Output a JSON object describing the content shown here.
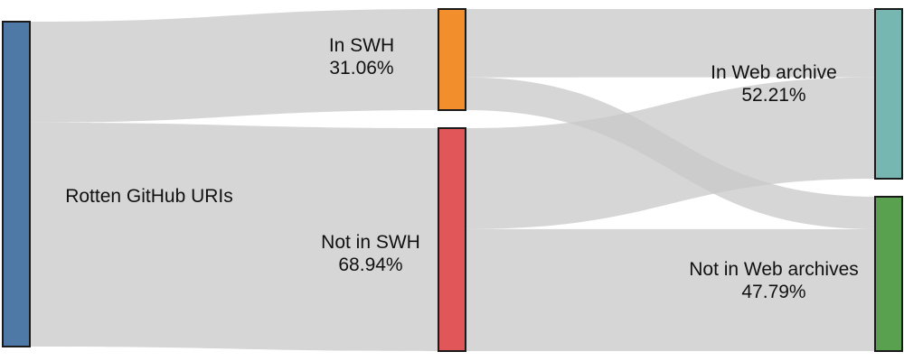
{
  "chart_data": {
    "type": "sankey",
    "nodes": [
      {
        "id": "rotten",
        "label": "Rotten GitHub URIs",
        "pct": "",
        "color": "#4e79a7"
      },
      {
        "id": "in_swh",
        "label": "In SWH",
        "pct": "31.06%",
        "color": "#f28e2b"
      },
      {
        "id": "not_swh",
        "label": "Not in SWH",
        "pct": "68.94%",
        "color": "#e15759"
      },
      {
        "id": "in_web",
        "label": "In Web archive",
        "pct": "52.21%",
        "color": "#76b7b2"
      },
      {
        "id": "not_web",
        "label": "Not in Web archives",
        "pct": "47.79%",
        "color": "#59a14f"
      }
    ],
    "links": [
      {
        "source": "rotten",
        "target": "in_swh",
        "value": 31.06
      },
      {
        "source": "rotten",
        "target": "not_swh",
        "value": 68.94
      },
      {
        "source": "in_swh",
        "target": "in_web",
        "value": 21.0
      },
      {
        "source": "in_swh",
        "target": "not_web",
        "value": 10.06
      },
      {
        "source": "not_swh",
        "target": "in_web",
        "value": 31.21
      },
      {
        "source": "not_swh",
        "target": "not_web",
        "value": 37.73
      }
    ],
    "link_color": "#c8c8c8"
  }
}
